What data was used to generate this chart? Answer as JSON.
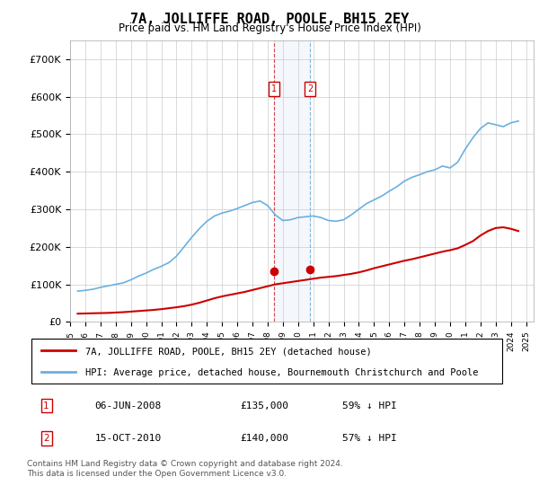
{
  "title": "7A, JOLLIFFE ROAD, POOLE, BH15 2EY",
  "subtitle": "Price paid vs. HM Land Registry's House Price Index (HPI)",
  "legend_line1": "7A, JOLLIFFE ROAD, POOLE, BH15 2EY (detached house)",
  "legend_line2": "HPI: Average price, detached house, Bournemouth Christchurch and Poole",
  "footnote": "Contains HM Land Registry data © Crown copyright and database right 2024.\nThis data is licensed under the Open Government Licence v3.0.",
  "transaction1_label": "1",
  "transaction1_date": "06-JUN-2008",
  "transaction1_price": "£135,000",
  "transaction1_hpi": "59% ↓ HPI",
  "transaction2_label": "2",
  "transaction2_date": "15-OCT-2010",
  "transaction2_price": "£140,000",
  "transaction2_hpi": "57% ↓ HPI",
  "hpi_color": "#6ab0e0",
  "price_color": "#cc0000",
  "marker_color": "#cc0000",
  "transaction1_x": 2008.43,
  "transaction2_x": 2010.79,
  "ylim": [
    0,
    750000
  ],
  "xlim_start": 1995.0,
  "xlim_end": 2025.5,
  "hpi_data": {
    "years": [
      1995.5,
      1996.0,
      1996.5,
      1997.0,
      1997.5,
      1998.0,
      1998.5,
      1999.0,
      1999.5,
      2000.0,
      2000.5,
      2001.0,
      2001.5,
      2002.0,
      2002.5,
      2003.0,
      2003.5,
      2004.0,
      2004.5,
      2005.0,
      2005.5,
      2006.0,
      2006.5,
      2007.0,
      2007.5,
      2008.0,
      2008.5,
      2009.0,
      2009.5,
      2010.0,
      2010.5,
      2011.0,
      2011.5,
      2012.0,
      2012.5,
      2013.0,
      2013.5,
      2014.0,
      2014.5,
      2015.0,
      2015.5,
      2016.0,
      2016.5,
      2017.0,
      2017.5,
      2018.0,
      2018.5,
      2019.0,
      2019.5,
      2020.0,
      2020.5,
      2021.0,
      2021.5,
      2022.0,
      2022.5,
      2023.0,
      2023.5,
      2024.0,
      2024.5
    ],
    "values": [
      82000,
      84000,
      87000,
      92000,
      96000,
      100000,
      104000,
      112000,
      122000,
      130000,
      140000,
      148000,
      158000,
      175000,
      200000,
      225000,
      248000,
      268000,
      282000,
      290000,
      295000,
      302000,
      310000,
      318000,
      322000,
      310000,
      285000,
      270000,
      272000,
      278000,
      280000,
      282000,
      278000,
      270000,
      268000,
      272000,
      285000,
      300000,
      315000,
      325000,
      335000,
      348000,
      360000,
      375000,
      385000,
      392000,
      400000,
      405000,
      415000,
      410000,
      425000,
      460000,
      490000,
      515000,
      530000,
      525000,
      520000,
      530000,
      535000
    ],
    "values2": [
      82000,
      84000,
      87000,
      91000,
      95000,
      99000,
      103000,
      111000,
      120000,
      128000,
      138000,
      146000,
      156000,
      172000,
      198000,
      223000,
      246000,
      265000,
      278000,
      286000,
      291000,
      298000,
      307000,
      315000,
      318000,
      306000,
      280000,
      265000,
      267000,
      273000,
      276000,
      277000,
      273000,
      265000,
      263000,
      267000,
      280000,
      295000,
      310000,
      320000,
      330000,
      343000,
      355000,
      369000,
      379000,
      386000,
      394000,
      399000,
      409000,
      404000,
      420000,
      455000,
      485000,
      510000,
      524000,
      518000,
      513000,
      523000,
      528000
    ]
  },
  "price_data": {
    "years": [
      1995.5,
      1996.0,
      1996.5,
      1997.0,
      1997.5,
      1998.0,
      1998.5,
      1999.0,
      1999.5,
      2000.0,
      2000.5,
      2001.0,
      2001.5,
      2002.0,
      2002.5,
      2003.0,
      2003.5,
      2004.0,
      2004.5,
      2005.0,
      2005.5,
      2006.0,
      2006.5,
      2007.0,
      2007.5,
      2008.0,
      2008.5,
      2009.0,
      2009.5,
      2010.0,
      2010.5,
      2011.0,
      2011.5,
      2012.0,
      2012.5,
      2013.0,
      2013.5,
      2014.0,
      2014.5,
      2015.0,
      2015.5,
      2016.0,
      2016.5,
      2017.0,
      2017.5,
      2018.0,
      2018.5,
      2019.0,
      2019.5,
      2020.0,
      2020.5,
      2021.0,
      2021.5,
      2022.0,
      2022.5,
      2023.0,
      2023.5,
      2024.0,
      2024.5
    ],
    "values": [
      22000,
      22500,
      23000,
      23500,
      24000,
      25000,
      26000,
      27500,
      29000,
      30500,
      32000,
      34000,
      36500,
      39000,
      42000,
      46000,
      51000,
      57000,
      63000,
      68000,
      72000,
      76000,
      80000,
      85000,
      90000,
      95000,
      100000,
      103000,
      106000,
      109000,
      112000,
      115000,
      118000,
      120000,
      122000,
      125000,
      128000,
      132000,
      137000,
      143000,
      148000,
      153000,
      158000,
      163000,
      167000,
      172000,
      177000,
      182000,
      187000,
      191000,
      196000,
      205000,
      215000,
      230000,
      242000,
      250000,
      252000,
      248000,
      242000
    ]
  },
  "xtick_years": [
    1995,
    1996,
    1997,
    1998,
    1999,
    2000,
    2001,
    2002,
    2003,
    2004,
    2005,
    2006,
    2007,
    2008,
    2009,
    2010,
    2011,
    2012,
    2013,
    2014,
    2015,
    2016,
    2017,
    2018,
    2019,
    2020,
    2021,
    2022,
    2023,
    2024,
    2025
  ],
  "ytick_values": [
    0,
    100000,
    200000,
    300000,
    400000,
    500000,
    600000,
    700000
  ],
  "ytick_labels": [
    "£0",
    "£100K",
    "£200K",
    "£300K",
    "£400K",
    "£500K",
    "£600K",
    "£700K"
  ]
}
